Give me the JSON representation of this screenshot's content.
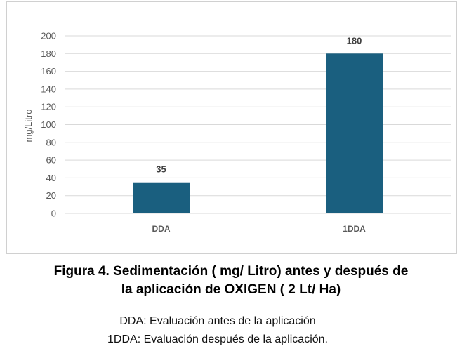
{
  "chart_data": {
    "type": "bar",
    "categories": [
      "DDA",
      "1DDA"
    ],
    "values": [
      35,
      180
    ],
    "data_labels": [
      "35",
      "180"
    ],
    "ylabel": "mg/Litro",
    "xlabel": "",
    "ylim": [
      0,
      200
    ],
    "yticks": [
      0,
      20,
      40,
      60,
      80,
      100,
      120,
      140,
      160,
      180,
      200
    ],
    "grid": true,
    "legend": "none",
    "bar_color": "#1a5f7f"
  },
  "caption": {
    "line1": "Figura 4.   Sedimentación ( mg/ Litro) antes y después de",
    "line2": "la aplicación de OXIGEN ( 2 Lt/ Ha)"
  },
  "notes": {
    "line1": "DDA: Evaluación antes de la aplicación",
    "line2": "1DDA: Evaluación después de la aplicación."
  }
}
